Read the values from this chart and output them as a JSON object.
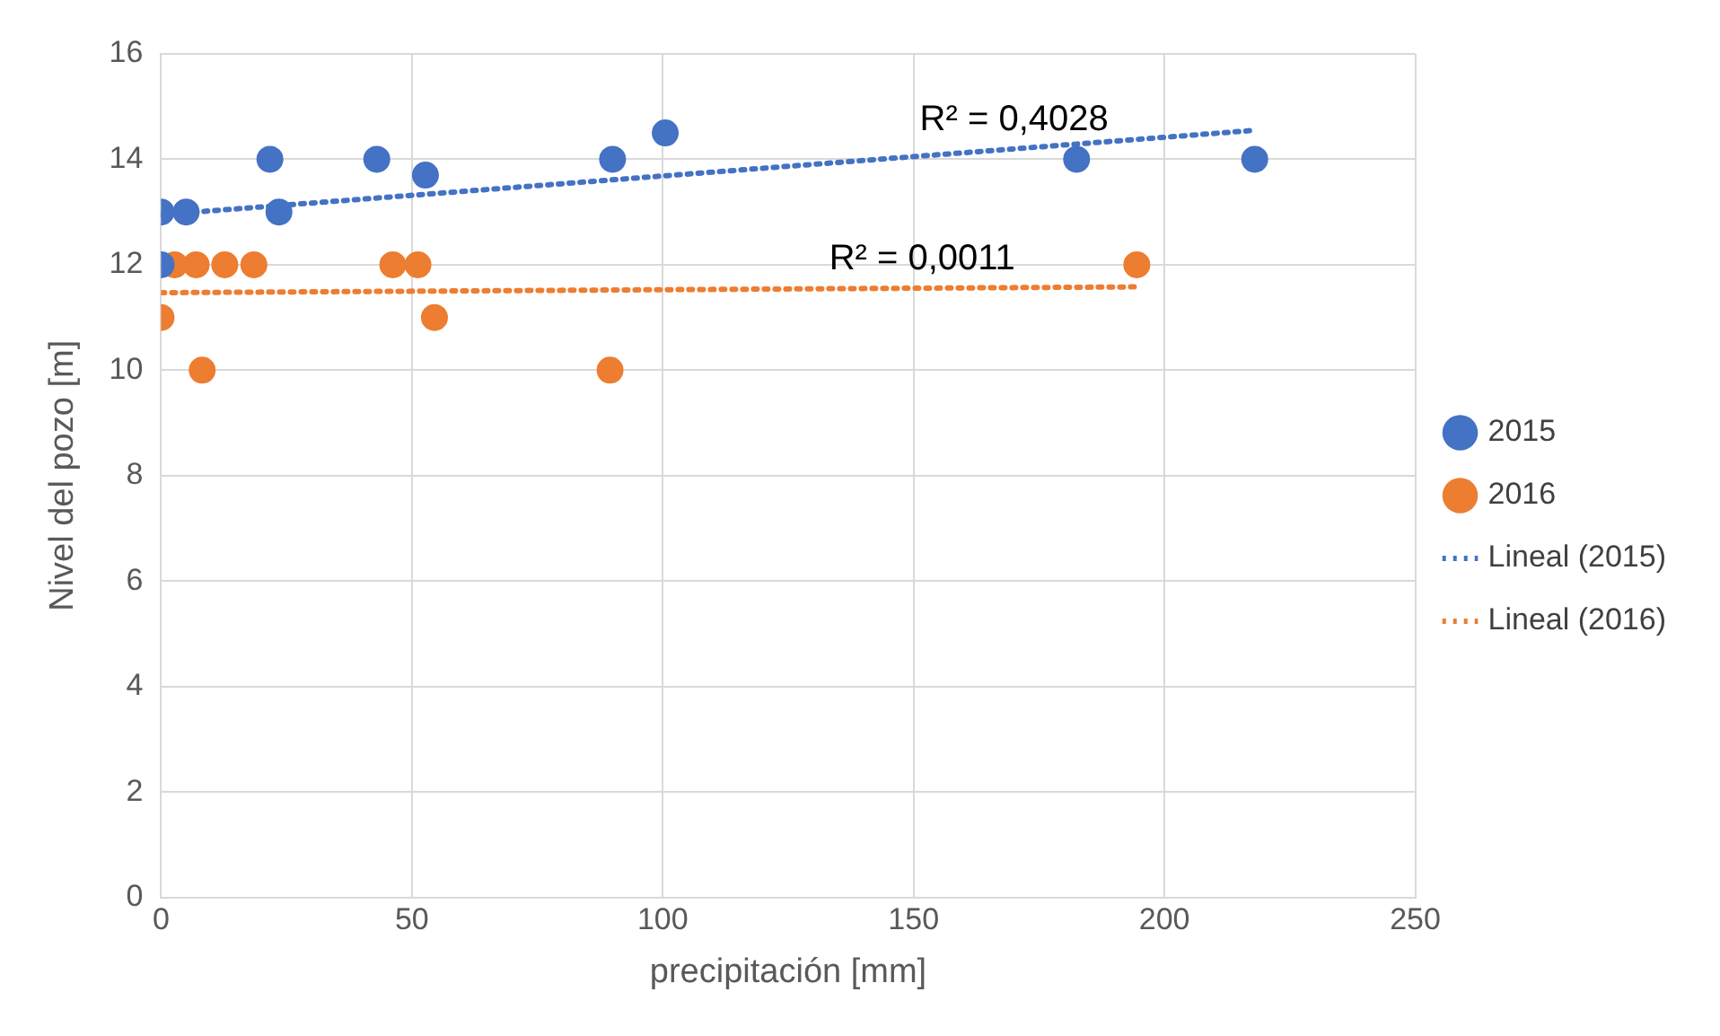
{
  "chart_data": {
    "type": "scatter",
    "xlabel": "precipitación [mm]",
    "ylabel": "Nivel del pozo [m]",
    "xlim": [
      0,
      250
    ],
    "xticks": [
      0,
      50,
      100,
      150,
      200,
      250
    ],
    "ylim": [
      0,
      16
    ],
    "yticks": [
      0,
      2,
      4,
      6,
      8,
      10,
      12,
      14,
      16
    ],
    "grid": true,
    "legend": "right",
    "marker": "circle",
    "series": [
      {
        "name": "2015",
        "color": "#4472c4",
        "x": [
          0,
          5,
          0,
          21.7,
          23.5,
          43,
          52.7,
          90,
          100.5,
          182.5,
          218
        ],
        "values": [
          13,
          13,
          12,
          14,
          13,
          14,
          13.7,
          14,
          14.5,
          14,
          14
        ]
      },
      {
        "name": "2016",
        "color": "#ed7d31",
        "x": [
          0,
          2.7,
          7,
          12.7,
          18.5,
          8.2,
          46.2,
          51.2,
          54.5,
          89.5,
          194.5
        ],
        "values": [
          11,
          12,
          12,
          12,
          12,
          10,
          12,
          12,
          11,
          10,
          12
        ]
      },
      {
        "name": "Lineal (2015)",
        "type": "line",
        "line_style": "dotted",
        "marker": "none",
        "color": "#4472c4",
        "x": [
          0,
          218
        ],
        "values": [
          12.95,
          14.55
        ]
      },
      {
        "name": "Lineal (2016)",
        "type": "line",
        "line_style": "dotted",
        "marker": "none",
        "color": "#ed7d31",
        "x": [
          0,
          194.5
        ],
        "values": [
          11.47,
          11.58
        ]
      }
    ],
    "annotations": [
      "R² = 0,4028",
      "R² = 0,0011"
    ]
  }
}
